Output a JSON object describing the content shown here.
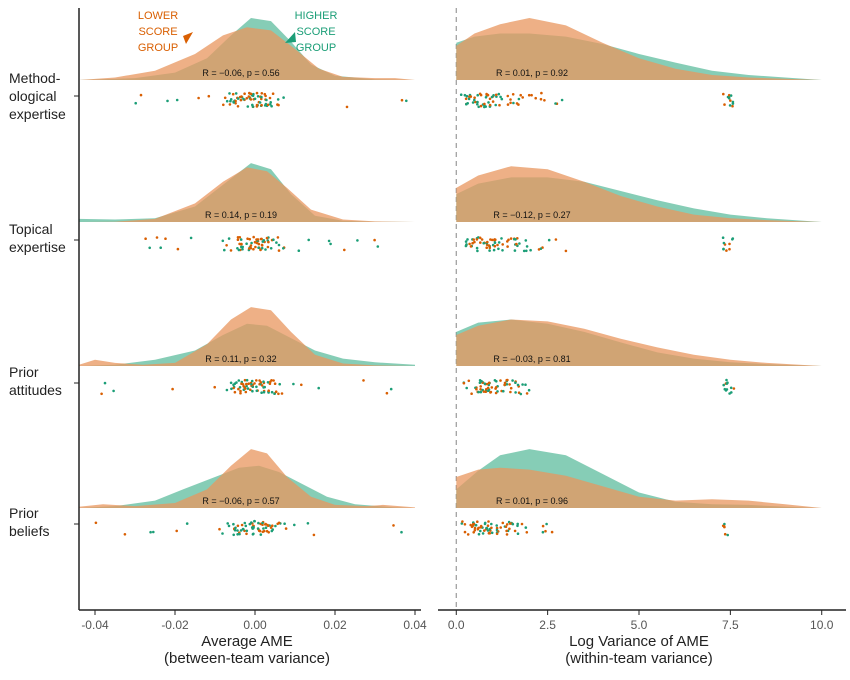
{
  "colors": {
    "lower": "#D95F02",
    "higher": "#1B9E77",
    "lower_fill": "#E8955E",
    "higher_fill": "#5DBC9E",
    "axis": "#222222",
    "tick": "#555555"
  },
  "legend": {
    "lower": [
      "LOWER",
      "SCORE",
      "GROUP"
    ],
    "higher": [
      "HIGHER",
      "SCORE",
      "GROUP"
    ]
  },
  "chart_data": {
    "type": "ridgeline density with jittered points",
    "groups": [
      "Lower score group",
      "Higher score group"
    ],
    "rows": [
      {
        "label": [
          "Method-",
          "ological",
          "expertise"
        ],
        "left_stat": "R = −0.06, p = 0.56",
        "right_stat": "R = 0.01, p = 0.92"
      },
      {
        "label": [
          "Topical",
          "expertise"
        ],
        "left_stat": "R = 0.14, p = 0.19",
        "right_stat": "R = −0.12, p = 0.27"
      },
      {
        "label": [
          "Prior",
          "attitudes"
        ],
        "left_stat": "R = 0.11, p = 0.32",
        "right_stat": "R = −0.03, p = 0.81"
      },
      {
        "label": [
          "Prior",
          "beliefs"
        ],
        "left_stat": "R = −0.06, p = 0.57",
        "right_stat": "R = 0.01, p = 0.96"
      }
    ],
    "left_panel": {
      "xlabel": [
        "Average AME",
        "(between-team variance)"
      ],
      "xlim": [
        -0.044,
        0.04
      ],
      "ticks": [
        -0.04,
        -0.02,
        0.0,
        0.02,
        0.04
      ],
      "tick_labels": [
        "-0.04",
        "-0.02",
        "0.00",
        "0.02",
        "0.04"
      ],
      "densities": [
        {
          "lower": [
            [
              -0.044,
              0
            ],
            [
              -0.035,
              0.04
            ],
            [
              -0.025,
              0.15
            ],
            [
              -0.015,
              0.42
            ],
            [
              -0.008,
              0.72
            ],
            [
              -0.002,
              0.85
            ],
            [
              0.004,
              0.8
            ],
            [
              0.01,
              0.5
            ],
            [
              0.016,
              0.18
            ],
            [
              0.022,
              0.05
            ],
            [
              0.03,
              0.03
            ],
            [
              0.035,
              0.03
            ],
            [
              0.04,
              0
            ]
          ],
          "higher": [
            [
              -0.044,
              0
            ],
            [
              -0.03,
              0.03
            ],
            [
              -0.02,
              0.12
            ],
            [
              -0.012,
              0.35
            ],
            [
              -0.006,
              0.72
            ],
            [
              -0.001,
              1.0
            ],
            [
              0.004,
              0.95
            ],
            [
              0.009,
              0.62
            ],
            [
              0.014,
              0.25
            ],
            [
              0.02,
              0.07
            ],
            [
              0.03,
              0.01
            ],
            [
              0.04,
              0
            ]
          ]
        },
        {
          "lower": [
            [
              -0.044,
              0
            ],
            [
              -0.035,
              0.005
            ],
            [
              -0.025,
              0.05
            ],
            [
              -0.015,
              0.3
            ],
            [
              -0.008,
              0.65
            ],
            [
              -0.002,
              0.88
            ],
            [
              0.003,
              0.82
            ],
            [
              0.008,
              0.55
            ],
            [
              0.014,
              0.2
            ],
            [
              0.022,
              0.04
            ],
            [
              0.03,
              0.01
            ],
            [
              0.04,
              0
            ]
          ],
          "higher": [
            [
              -0.044,
              0.05
            ],
            [
              -0.035,
              0.04
            ],
            [
              -0.025,
              0.06
            ],
            [
              -0.015,
              0.25
            ],
            [
              -0.008,
              0.6
            ],
            [
              -0.001,
              0.95
            ],
            [
              0.004,
              0.85
            ],
            [
              0.009,
              0.45
            ],
            [
              0.015,
              0.1
            ],
            [
              0.022,
              0.02
            ],
            [
              0.03,
              0.005
            ],
            [
              0.04,
              0
            ]
          ]
        },
        {
          "lower": [
            [
              -0.044,
              0.02
            ],
            [
              -0.04,
              0.1
            ],
            [
              -0.035,
              0.05
            ],
            [
              -0.028,
              0.02
            ],
            [
              -0.02,
              0.05
            ],
            [
              -0.012,
              0.35
            ],
            [
              -0.006,
              0.75
            ],
            [
              -0.001,
              0.95
            ],
            [
              0.004,
              0.9
            ],
            [
              0.009,
              0.55
            ],
            [
              0.015,
              0.18
            ],
            [
              0.022,
              0.04
            ],
            [
              0.03,
              0.01
            ],
            [
              0.04,
              0
            ]
          ],
          "higher": [
            [
              -0.044,
              0
            ],
            [
              -0.035,
              0.02
            ],
            [
              -0.025,
              0.1
            ],
            [
              -0.015,
              0.25
            ],
            [
              -0.008,
              0.5
            ],
            [
              -0.002,
              0.68
            ],
            [
              0.003,
              0.65
            ],
            [
              0.009,
              0.45
            ],
            [
              0.015,
              0.25
            ],
            [
              0.022,
              0.12
            ],
            [
              0.03,
              0.06
            ],
            [
              0.04,
              0.02
            ]
          ]
        },
        {
          "lower": [
            [
              -0.044,
              0.02
            ],
            [
              -0.038,
              0.06
            ],
            [
              -0.03,
              0.03
            ],
            [
              -0.02,
              0.08
            ],
            [
              -0.012,
              0.3
            ],
            [
              -0.006,
              0.68
            ],
            [
              -0.001,
              0.95
            ],
            [
              0.003,
              0.88
            ],
            [
              0.008,
              0.5
            ],
            [
              0.014,
              0.18
            ],
            [
              0.02,
              0.05
            ],
            [
              0.028,
              0.03
            ],
            [
              0.032,
              0.05
            ],
            [
              0.04,
              0.01
            ]
          ],
          "higher": [
            [
              -0.044,
              0
            ],
            [
              -0.035,
              0.03
            ],
            [
              -0.025,
              0.12
            ],
            [
              -0.018,
              0.3
            ],
            [
              -0.01,
              0.5
            ],
            [
              -0.004,
              0.65
            ],
            [
              0.001,
              0.68
            ],
            [
              0.006,
              0.58
            ],
            [
              0.012,
              0.38
            ],
            [
              0.018,
              0.18
            ],
            [
              0.025,
              0.06
            ],
            [
              0.035,
              0.01
            ],
            [
              0.04,
              0
            ]
          ]
        }
      ]
    },
    "right_panel": {
      "xlabel": [
        "Log Variance of AME",
        "(within-team variance)"
      ],
      "xlim": [
        -0.5,
        10.5
      ],
      "ticks": [
        0.0,
        2.5,
        5.0,
        7.5,
        10.0
      ],
      "tick_labels": [
        "0.0",
        "2.5",
        "5.0",
        "7.5",
        "10.0"
      ],
      "reference_x": 0,
      "densities": [
        {
          "lower": [
            [
              0,
              0.55
            ],
            [
              0.5,
              0.75
            ],
            [
              1.2,
              0.9
            ],
            [
              2,
              1.0
            ],
            [
              3,
              0.88
            ],
            [
              4,
              0.6
            ],
            [
              5,
              0.35
            ],
            [
              6,
              0.18
            ],
            [
              7,
              0.08
            ],
            [
              8,
              0.04
            ],
            [
              9,
              0.02
            ],
            [
              10,
              0
            ]
          ],
          "higher": [
            [
              0,
              0.6
            ],
            [
              0.5,
              0.7
            ],
            [
              1.2,
              0.75
            ],
            [
              2,
              0.75
            ],
            [
              3,
              0.7
            ],
            [
              4,
              0.58
            ],
            [
              5,
              0.42
            ],
            [
              6,
              0.28
            ],
            [
              7,
              0.15
            ],
            [
              8,
              0.08
            ],
            [
              9,
              0.04
            ],
            [
              10,
              0
            ]
          ]
        },
        {
          "lower": [
            [
              0,
              0.55
            ],
            [
              0.6,
              0.75
            ],
            [
              1.5,
              0.9
            ],
            [
              2.5,
              0.85
            ],
            [
              3.5,
              0.65
            ],
            [
              4.5,
              0.42
            ],
            [
              5.5,
              0.25
            ],
            [
              6.5,
              0.12
            ],
            [
              7.5,
              0.06
            ],
            [
              8.5,
              0.03
            ],
            [
              10,
              0
            ]
          ],
          "higher": [
            [
              0,
              0.45
            ],
            [
              0.6,
              0.62
            ],
            [
              1.5,
              0.72
            ],
            [
              2.5,
              0.72
            ],
            [
              3.5,
              0.65
            ],
            [
              4.5,
              0.5
            ],
            [
              5.5,
              0.35
            ],
            [
              6.5,
              0.22
            ],
            [
              7.5,
              0.12
            ],
            [
              8.5,
              0.06
            ],
            [
              10,
              0
            ]
          ]
        },
        {
          "lower": [
            [
              0,
              0.5
            ],
            [
              0.6,
              0.65
            ],
            [
              1.5,
              0.75
            ],
            [
              2.5,
              0.72
            ],
            [
              3.5,
              0.6
            ],
            [
              4.5,
              0.44
            ],
            [
              5.5,
              0.3
            ],
            [
              6.5,
              0.18
            ],
            [
              7.5,
              0.1
            ],
            [
              8.5,
              0.05
            ],
            [
              10,
              0
            ]
          ],
          "higher": [
            [
              0,
              0.55
            ],
            [
              0.6,
              0.7
            ],
            [
              1.5,
              0.75
            ],
            [
              2.5,
              0.68
            ],
            [
              3.5,
              0.55
            ],
            [
              4.5,
              0.38
            ],
            [
              5.5,
              0.22
            ],
            [
              6.5,
              0.12
            ],
            [
              7.5,
              0.06
            ],
            [
              8.5,
              0.03
            ],
            [
              10,
              0
            ]
          ]
        },
        {
          "lower": [
            [
              0,
              0.5
            ],
            [
              0.6,
              0.62
            ],
            [
              1.2,
              0.65
            ],
            [
              2,
              0.62
            ],
            [
              3,
              0.52
            ],
            [
              4,
              0.35
            ],
            [
              5,
              0.18
            ],
            [
              6,
              0.12
            ],
            [
              7,
              0.14
            ],
            [
              8,
              0.12
            ],
            [
              9,
              0.06
            ],
            [
              10,
              0
            ]
          ],
          "higher": [
            [
              0,
              0.3
            ],
            [
              0.6,
              0.6
            ],
            [
              1.2,
              0.85
            ],
            [
              2,
              0.95
            ],
            [
              3,
              0.85
            ],
            [
              4,
              0.55
            ],
            [
              5,
              0.25
            ],
            [
              6,
              0.1
            ],
            [
              7,
              0.06
            ],
            [
              8,
              0.05
            ],
            [
              9,
              0.02
            ],
            [
              10,
              0
            ]
          ]
        }
      ]
    }
  }
}
